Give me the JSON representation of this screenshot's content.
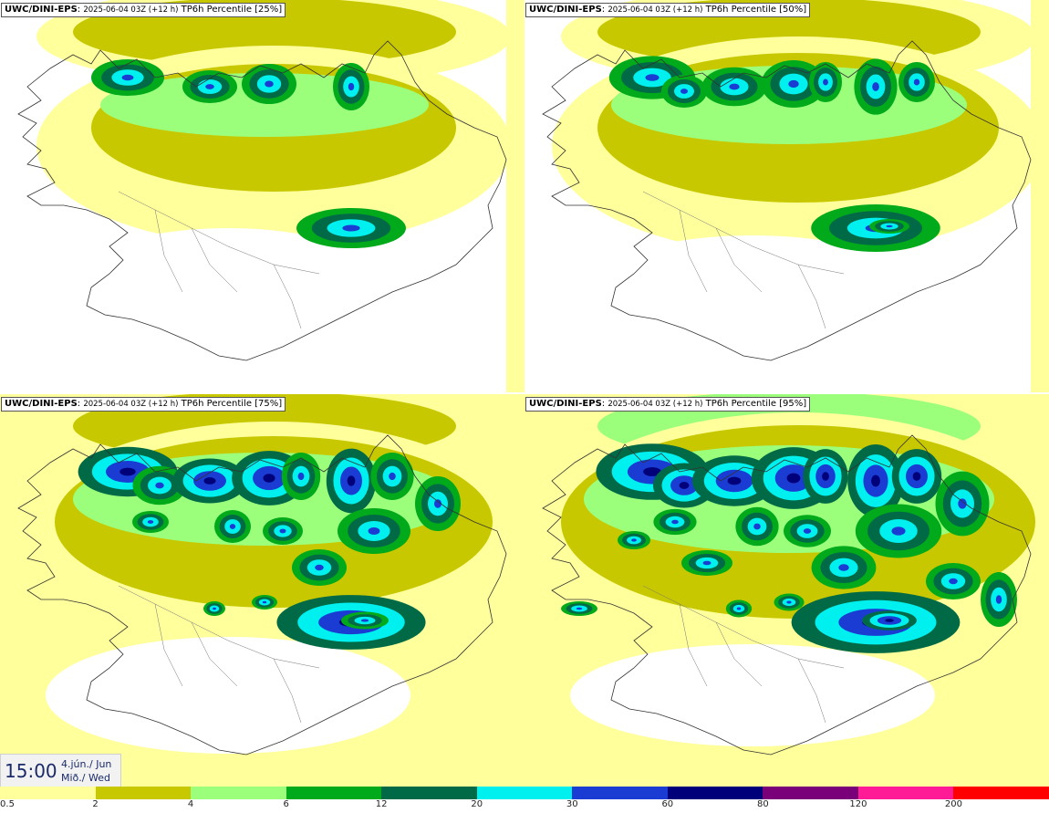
{
  "panels": [
    {
      "model": "UWC/DINI-EPS",
      "run": "2025-06-04 03Z (+12 h)",
      "field": "TP6h Percentile [25%]",
      "level": 0
    },
    {
      "model": "UWC/DINI-EPS",
      "run": "2025-06-04 03Z (+12 h)",
      "field": "TP6h Percentile [50%]",
      "level": 1
    },
    {
      "model": "UWC/DINI-EPS",
      "run": "2025-06-04 03Z (+12 h)",
      "field": "TP6h Percentile [75%]",
      "level": 2
    },
    {
      "model": "UWC/DINI-EPS",
      "run": "2025-06-04 03Z (+12 h)",
      "field": "TP6h Percentile [95%]",
      "level": 3
    }
  ],
  "valid_time": {
    "time": "15:00",
    "date_line1": "4.jún./ Jun",
    "date_line2": "Mið./ Wed"
  },
  "legend": {
    "colors": [
      "#ffff9c",
      "#c8c800",
      "#9cff7c",
      "#00aa1a",
      "#006a46",
      "#00f0f0",
      "#1a3cd2",
      "#00007a",
      "#7a007a",
      "#ff1a96",
      "#ff0000"
    ],
    "ticks": [
      "0.5",
      "2",
      "4",
      "6",
      "12",
      "20",
      "30",
      "60",
      "80",
      "120",
      "200"
    ]
  }
}
